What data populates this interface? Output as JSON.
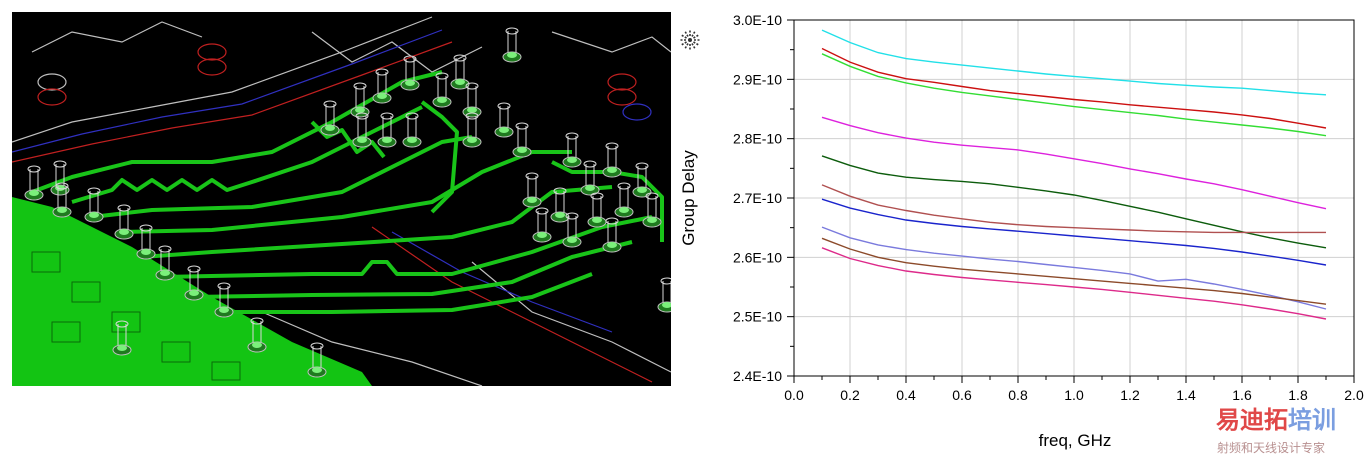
{
  "pcb_image": {
    "description_icon": "pcb-layout-3d-view",
    "colors": {
      "background": "#000000",
      "trace": "#19c419",
      "plane": "#13c413",
      "via": "#d8d8d8",
      "outline_white": "#bfbfbf",
      "outline_red": "#c02020",
      "outline_blue": "#3030c0"
    }
  },
  "marker_icon": "starburst-marker-icon",
  "chart_data": {
    "type": "line",
    "title": "",
    "xlabel": "freq, GHz",
    "ylabel": "Group Delay",
    "xlim": [
      0.0,
      2.0
    ],
    "ylim": [
      2.4e-10,
      3e-10
    ],
    "xticks": [
      "0.0",
      "0.2",
      "0.4",
      "0.6",
      "0.8",
      "1.0",
      "1.2",
      "1.4",
      "1.6",
      "1.8",
      "2.0"
    ],
    "yticks": [
      "2.4E-10",
      "2.5E-10",
      "2.6E-10",
      "2.7E-10",
      "2.8E-10",
      "2.9E-10",
      "3.0E-10"
    ],
    "grid": true,
    "x": [
      0.1,
      0.2,
      0.3,
      0.4,
      0.5,
      0.6,
      0.7,
      0.8,
      0.9,
      1.0,
      1.1,
      1.2,
      1.3,
      1.4,
      1.5,
      1.6,
      1.7,
      1.8,
      1.9
    ],
    "series": [
      {
        "color": "#22e0e8",
        "values": [
          2.983,
          2.962,
          2.945,
          2.935,
          2.929,
          2.924,
          2.919,
          2.914,
          2.909,
          2.905,
          2.901,
          2.897,
          2.893,
          2.89,
          2.887,
          2.885,
          2.881,
          2.877,
          2.874
        ]
      },
      {
        "color": "#cc1010",
        "values": [
          2.952,
          2.929,
          2.912,
          2.901,
          2.895,
          2.888,
          2.881,
          2.876,
          2.871,
          2.866,
          2.862,
          2.857,
          2.853,
          2.849,
          2.845,
          2.84,
          2.834,
          2.826,
          2.818
        ]
      },
      {
        "color": "#33dd33",
        "values": [
          2.943,
          2.922,
          2.905,
          2.894,
          2.885,
          2.878,
          2.872,
          2.866,
          2.86,
          2.854,
          2.849,
          2.844,
          2.839,
          2.833,
          2.828,
          2.823,
          2.818,
          2.812,
          2.805
        ]
      },
      {
        "color": "#dd22dd",
        "values": [
          2.836,
          2.822,
          2.81,
          2.801,
          2.794,
          2.789,
          2.785,
          2.781,
          2.774,
          2.766,
          2.758,
          2.749,
          2.741,
          2.732,
          2.724,
          2.714,
          2.703,
          2.692,
          2.682
        ]
      },
      {
        "color": "#0c5c0c",
        "values": [
          2.771,
          2.755,
          2.742,
          2.735,
          2.731,
          2.728,
          2.724,
          2.718,
          2.712,
          2.705,
          2.696,
          2.686,
          2.676,
          2.665,
          2.654,
          2.643,
          2.633,
          2.624,
          2.616
        ]
      },
      {
        "color": "#b05050",
        "values": [
          2.722,
          2.703,
          2.688,
          2.679,
          2.671,
          2.665,
          2.659,
          2.655,
          2.652,
          2.65,
          2.648,
          2.646,
          2.644,
          2.643,
          2.642,
          2.642,
          2.642,
          2.642,
          2.642
        ]
      },
      {
        "color": "#1a24cc",
        "values": [
          2.698,
          2.683,
          2.672,
          2.663,
          2.657,
          2.652,
          2.648,
          2.644,
          2.64,
          2.636,
          2.632,
          2.628,
          2.624,
          2.62,
          2.615,
          2.609,
          2.602,
          2.595,
          2.587
        ]
      },
      {
        "color": "#7a7add",
        "values": [
          2.651,
          2.633,
          2.621,
          2.613,
          2.607,
          2.602,
          2.597,
          2.593,
          2.588,
          2.583,
          2.578,
          2.572,
          2.56,
          2.563,
          2.555,
          2.546,
          2.536,
          2.525,
          2.513
        ]
      },
      {
        "color": "#8c4a2a",
        "values": [
          2.632,
          2.614,
          2.6,
          2.591,
          2.585,
          2.58,
          2.576,
          2.572,
          2.568,
          2.564,
          2.56,
          2.556,
          2.552,
          2.548,
          2.544,
          2.539,
          2.533,
          2.527,
          2.521
        ]
      },
      {
        "color": "#dd2a8a",
        "values": [
          2.616,
          2.598,
          2.586,
          2.577,
          2.571,
          2.566,
          2.562,
          2.558,
          2.554,
          2.55,
          2.546,
          2.541,
          2.536,
          2.531,
          2.526,
          2.52,
          2.513,
          2.505,
          2.496
        ]
      }
    ]
  },
  "watermark": {
    "main_chars": [
      "易",
      "迪",
      "拓",
      "培",
      "训"
    ],
    "main_colors": [
      "#e04848",
      "#e04848",
      "#e04848",
      "#7b9ee0",
      "#7b9ee0"
    ],
    "sub": "射频和天线设计专家"
  }
}
